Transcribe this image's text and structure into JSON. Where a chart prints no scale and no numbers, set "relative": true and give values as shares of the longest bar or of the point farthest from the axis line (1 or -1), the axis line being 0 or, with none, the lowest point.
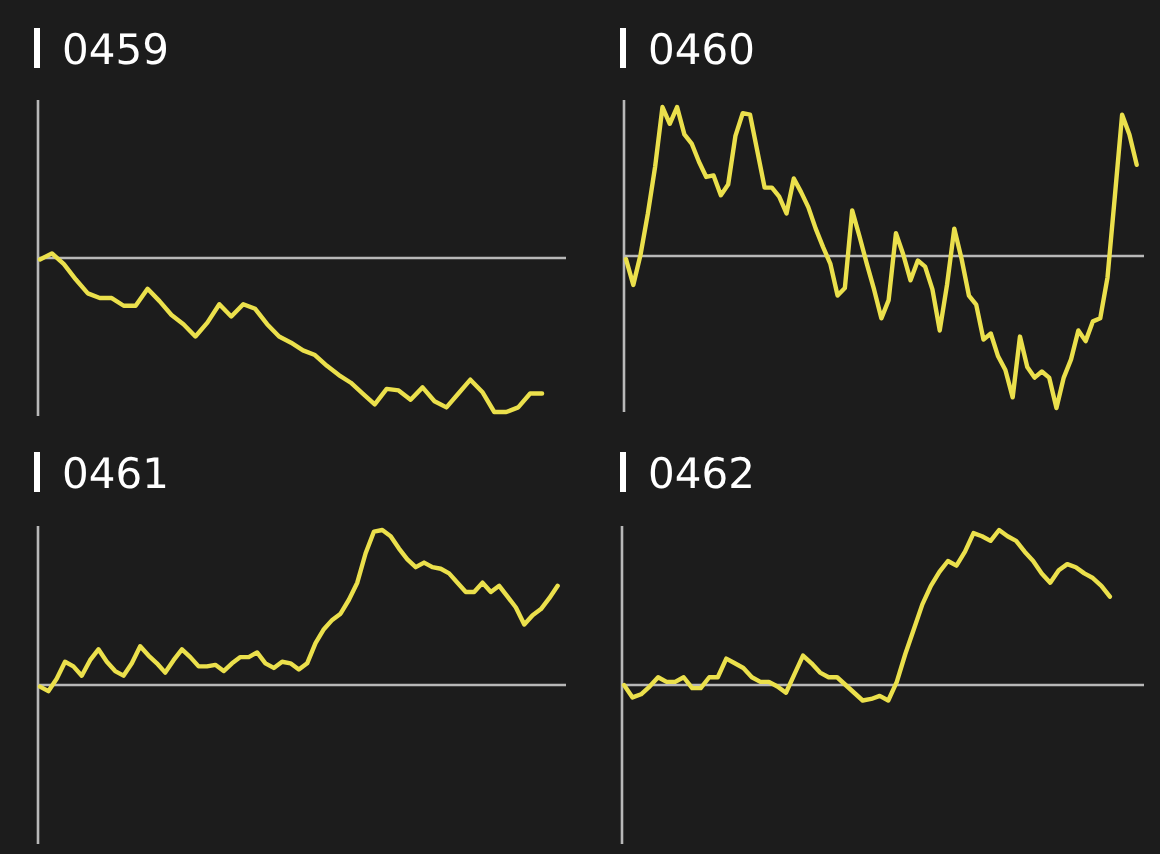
{
  "chart_data": [
    {
      "type": "line",
      "title": "0459",
      "relative": true,
      "categories": [
        null,
        null,
        null,
        null,
        null,
        null,
        null,
        null,
        null,
        null,
        null,
        null,
        null,
        null,
        null,
        null,
        null,
        null,
        null,
        null,
        null,
        null,
        null,
        null,
        null,
        null,
        null,
        null,
        null,
        null,
        null,
        null,
        null,
        null,
        null,
        null,
        null,
        null,
        null,
        null,
        null,
        null,
        null,
        null,
        null
      ],
      "series": [
        {
          "color": "#ebe04c",
          "values": [
            -0.01,
            0.03,
            -0.04,
            -0.14,
            -0.23,
            -0.26,
            -0.26,
            -0.31,
            -0.31,
            -0.2,
            -0.28,
            -0.37,
            -0.43,
            -0.51,
            -0.42,
            -0.3,
            -0.38,
            -0.3,
            -0.33,
            -0.43,
            -0.51,
            -0.55,
            -0.6,
            -0.63,
            -0.7,
            -0.76,
            -0.81,
            -0.88,
            -0.95,
            -0.85,
            -0.86,
            -0.92,
            -0.84,
            -0.93,
            -0.97,
            -0.88,
            -0.79,
            -0.87,
            -1,
            -1,
            -0.97,
            -0.88,
            -0.88,
            null,
            null
          ]
        }
      ]
    },
    {
      "type": "line",
      "title": "0460",
      "relative": true,
      "categories": [
        null,
        null,
        null,
        null,
        null,
        null,
        null,
        null,
        null,
        null,
        null,
        null,
        null,
        null,
        null,
        null,
        null,
        null,
        null,
        null,
        null,
        null,
        null,
        null,
        null,
        null,
        null,
        null,
        null,
        null,
        null,
        null,
        null,
        null,
        null,
        null,
        null,
        null,
        null,
        null,
        null,
        null,
        null,
        null,
        null,
        null,
        null,
        null,
        null,
        null,
        null,
        null,
        null,
        null,
        null,
        null,
        null,
        null,
        null,
        null,
        null,
        null,
        null,
        null,
        null,
        null,
        null,
        null,
        null,
        null,
        null,
        null
      ],
      "series": [
        {
          "color": "#ebe04c",
          "values": [
            -0.02,
            -0.19,
            0.01,
            0.28,
            0.59,
            0.98,
            0.87,
            0.98,
            0.8,
            0.74,
            0.62,
            0.52,
            0.53,
            0.4,
            0.47,
            0.79,
            0.94,
            0.93,
            0.69,
            0.45,
            0.45,
            0.39,
            0.28,
            0.51,
            0.42,
            0.32,
            0.18,
            0.06,
            -0.05,
            -0.26,
            -0.21,
            0.3,
            0.13,
            -0.05,
            -0.22,
            -0.41,
            -0.29,
            0.15,
            0.01,
            -0.16,
            -0.03,
            -0.07,
            -0.22,
            -0.49,
            -0.19,
            0.18,
            -0.02,
            -0.26,
            -0.32,
            -0.55,
            -0.51,
            -0.66,
            -0.75,
            -0.93,
            -0.53,
            -0.73,
            -0.8,
            -0.76,
            -0.8,
            -1,
            -0.8,
            -0.68,
            -0.49,
            -0.56,
            -0.43,
            -0.41,
            -0.14,
            0.39,
            0.93,
            0.8,
            0.6,
            null
          ]
        }
      ]
    },
    {
      "type": "line",
      "title": "0461",
      "relative": true,
      "categories": [
        null,
        null,
        null,
        null,
        null,
        null,
        null,
        null,
        null,
        null,
        null,
        null,
        null,
        null,
        null,
        null,
        null,
        null,
        null,
        null,
        null,
        null,
        null,
        null,
        null,
        null,
        null,
        null,
        null,
        null,
        null,
        null,
        null,
        null,
        null,
        null,
        null,
        null,
        null,
        null,
        null,
        null,
        null,
        null,
        null,
        null,
        null,
        null,
        null,
        null,
        null,
        null,
        null,
        null,
        null,
        null,
        null,
        null,
        null,
        null,
        null,
        null,
        null,
        null
      ],
      "series": [
        {
          "color": "#ebe04c",
          "values": [
            -0.01,
            -0.04,
            0.04,
            0.15,
            0.12,
            0.06,
            0.16,
            0.23,
            0.15,
            0.09,
            0.06,
            0.14,
            0.25,
            0.19,
            0.14,
            0.08,
            0.16,
            0.23,
            0.18,
            0.12,
            0.12,
            0.13,
            0.09,
            0.14,
            0.18,
            0.18,
            0.21,
            0.14,
            0.11,
            0.15,
            0.14,
            0.1,
            0.14,
            0.27,
            0.36,
            0.42,
            0.46,
            0.55,
            0.66,
            0.85,
            0.99,
            1,
            0.96,
            0.88,
            0.81,
            0.76,
            0.79,
            0.76,
            0.75,
            0.72,
            0.66,
            0.6,
            0.6,
            0.66,
            0.6,
            0.64,
            0.57,
            0.5,
            0.39,
            0.45,
            0.49,
            0.56,
            0.64,
            null
          ]
        }
      ]
    },
    {
      "type": "line",
      "title": "0462",
      "relative": true,
      "categories": [
        null,
        null,
        null,
        null,
        null,
        null,
        null,
        null,
        null,
        null,
        null,
        null,
        null,
        null,
        null,
        null,
        null,
        null,
        null,
        null,
        null,
        null,
        null,
        null,
        null,
        null,
        null,
        null,
        null,
        null,
        null,
        null,
        null,
        null,
        null,
        null,
        null,
        null,
        null,
        null,
        null,
        null,
        null,
        null,
        null,
        null,
        null,
        null,
        null,
        null,
        null,
        null,
        null,
        null,
        null,
        null,
        null,
        null,
        null,
        null,
        null,
        null
      ],
      "series": [
        {
          "color": "#ebe04c",
          "values": [
            0,
            -0.08,
            -0.06,
            -0.01,
            0.05,
            0.02,
            0.02,
            0.05,
            -0.02,
            -0.02,
            0.05,
            0.05,
            0.17,
            0.14,
            0.11,
            0.05,
            0.02,
            0.02,
            -0.01,
            -0.05,
            0.07,
            0.19,
            0.14,
            0.08,
            0.05,
            0.05,
            0,
            -0.05,
            -0.1,
            -0.09,
            -0.07,
            -0.1,
            0.02,
            0.2,
            0.36,
            0.52,
            0.64,
            0.73,
            0.8,
            0.77,
            0.86,
            0.98,
            0.96,
            0.93,
            1,
            0.96,
            0.93,
            0.86,
            0.8,
            0.72,
            0.66,
            0.74,
            0.78,
            0.76,
            0.72,
            0.69,
            0.64,
            0.57,
            null,
            null,
            null,
            null
          ]
        }
      ]
    }
  ]
}
